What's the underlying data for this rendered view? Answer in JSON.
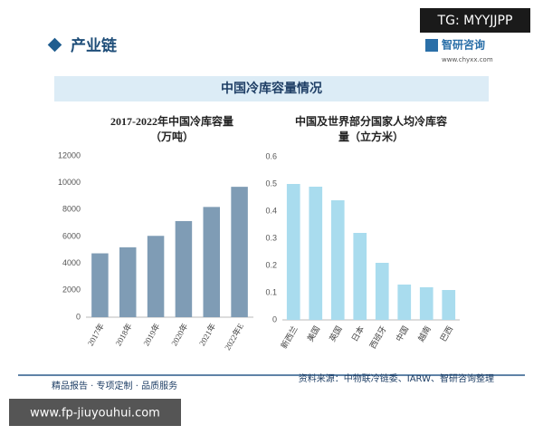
{
  "header": {
    "tag": "TG: MYYJJPP",
    "section": "产业链",
    "logo": "智研咨询",
    "site": "www.chyxx.com",
    "banner": "中国冷库容量情况"
  },
  "chart_data": [
    {
      "type": "bar",
      "title": [
        "2017-2022年中国冷库容量",
        "（万吨）"
      ],
      "categories": [
        "2017年",
        "2018年",
        "2019年",
        "2020年",
        "2021年",
        "2022年E"
      ],
      "values": [
        4750,
        5200,
        6050,
        7150,
        8200,
        9700
      ],
      "color": "#7f9cb5",
      "ylim": [
        0,
        12000
      ],
      "yticks": [
        0,
        2000,
        4000,
        6000,
        8000,
        10000,
        12000
      ],
      "grid": false
    },
    {
      "type": "bar",
      "title": [
        "中国及世界部分国家人均冷库容",
        "量（立方米）"
      ],
      "categories": [
        "新西兰",
        "美国",
        "英国",
        "日本",
        "西班牙",
        "中国",
        "越南",
        "巴西"
      ],
      "values": [
        0.5,
        0.49,
        0.44,
        0.32,
        0.21,
        0.13,
        0.12,
        0.11
      ],
      "color": "#a9dcee",
      "ylim": [
        0,
        0.6
      ],
      "yticks": [
        0,
        0.1,
        0.2,
        0.3,
        0.4,
        0.5,
        0.6
      ],
      "grid": false
    }
  ],
  "footer": {
    "slogan": "精品报告 · 专项定制 · 品质服务",
    "source": "资料来源：中物联冷链委、IARW、智研咨询整理",
    "watermark_site": "www.fp-jiuyouhui.com"
  }
}
